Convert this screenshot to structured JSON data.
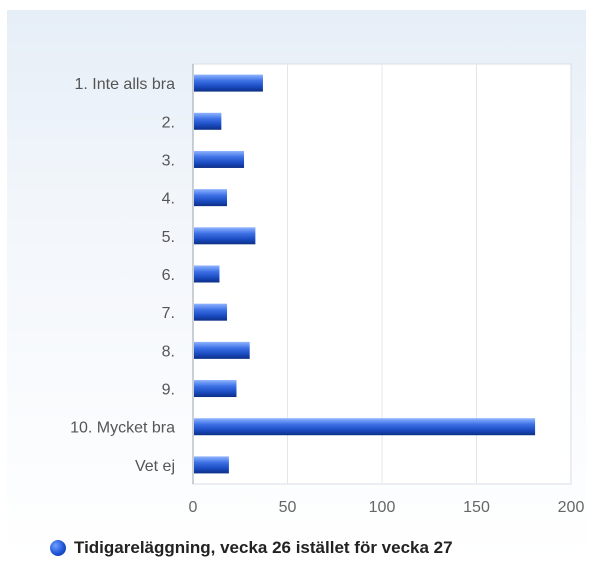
{
  "chart_data": {
    "type": "bar",
    "orientation": "horizontal",
    "categories": [
      "1. Inte alls bra",
      "2.",
      "3.",
      "4.",
      "5.",
      "6.",
      "7.",
      "8.",
      "9.",
      "10. Mycket bra",
      "Vet ej"
    ],
    "series": [
      {
        "name": "Tidigareläggning, vecka 26 istället för vecka 27",
        "values": [
          37,
          15,
          27,
          18,
          33,
          14,
          18,
          30,
          23,
          181,
          19
        ],
        "color": "#2a5bd7"
      }
    ],
    "x_ticks": [
      "0",
      "50",
      "100",
      "150",
      "200"
    ],
    "xlim": [
      0,
      200
    ],
    "grid": true,
    "legend_position": "bottom"
  }
}
